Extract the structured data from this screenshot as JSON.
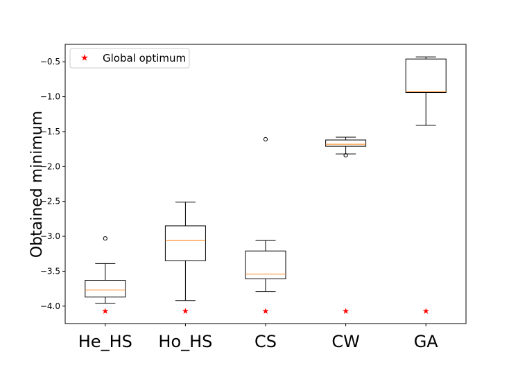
{
  "chart_data": {
    "type": "box",
    "title": "",
    "xlabel": "",
    "ylabel": "Obtained minimum",
    "ylim": [
      -4.25,
      -0.25
    ],
    "yticks": [
      -4.0,
      -3.5,
      -3.0,
      -2.5,
      -2.0,
      -1.5,
      -1.0,
      -0.5
    ],
    "ytick_labels": [
      "−4.0",
      "−3.5",
      "−3.0",
      "−2.5",
      "−2.0",
      "−1.5",
      "−1.0",
      "−0.5"
    ],
    "categories": [
      "He_HS",
      "Ho_HS",
      "CS",
      "CW",
      "GA"
    ],
    "boxes": [
      {
        "name": "He_HS",
        "whisker_low": -3.96,
        "q1": -3.87,
        "median": -3.77,
        "q3": -3.63,
        "whisker_high": -3.39,
        "outliers": [
          -3.03
        ]
      },
      {
        "name": "Ho_HS",
        "whisker_low": -3.92,
        "q1": -3.35,
        "median": -3.06,
        "q3": -2.85,
        "whisker_high": -2.51,
        "outliers": []
      },
      {
        "name": "CS",
        "whisker_low": -3.79,
        "q1": -3.61,
        "median": -3.54,
        "q3": -3.21,
        "whisker_high": -3.06,
        "outliers": [
          -1.61
        ]
      },
      {
        "name": "CW",
        "whisker_low": -1.82,
        "q1": -1.71,
        "median": -1.68,
        "q3": -1.62,
        "whisker_high": -1.58,
        "outliers": [
          -1.84
        ]
      },
      {
        "name": "GA",
        "whisker_low": -1.41,
        "q1": -0.94,
        "median": -0.93,
        "q3": -0.46,
        "whisker_high": -0.43,
        "outliers": []
      }
    ],
    "global_optimum": -4.07,
    "legend": {
      "label": "Global optimum",
      "location": "upper-left"
    },
    "colors": {
      "box": "#000000",
      "median": "#ff7f0e",
      "marker": "#ff0000",
      "outlier": "#000000"
    }
  }
}
